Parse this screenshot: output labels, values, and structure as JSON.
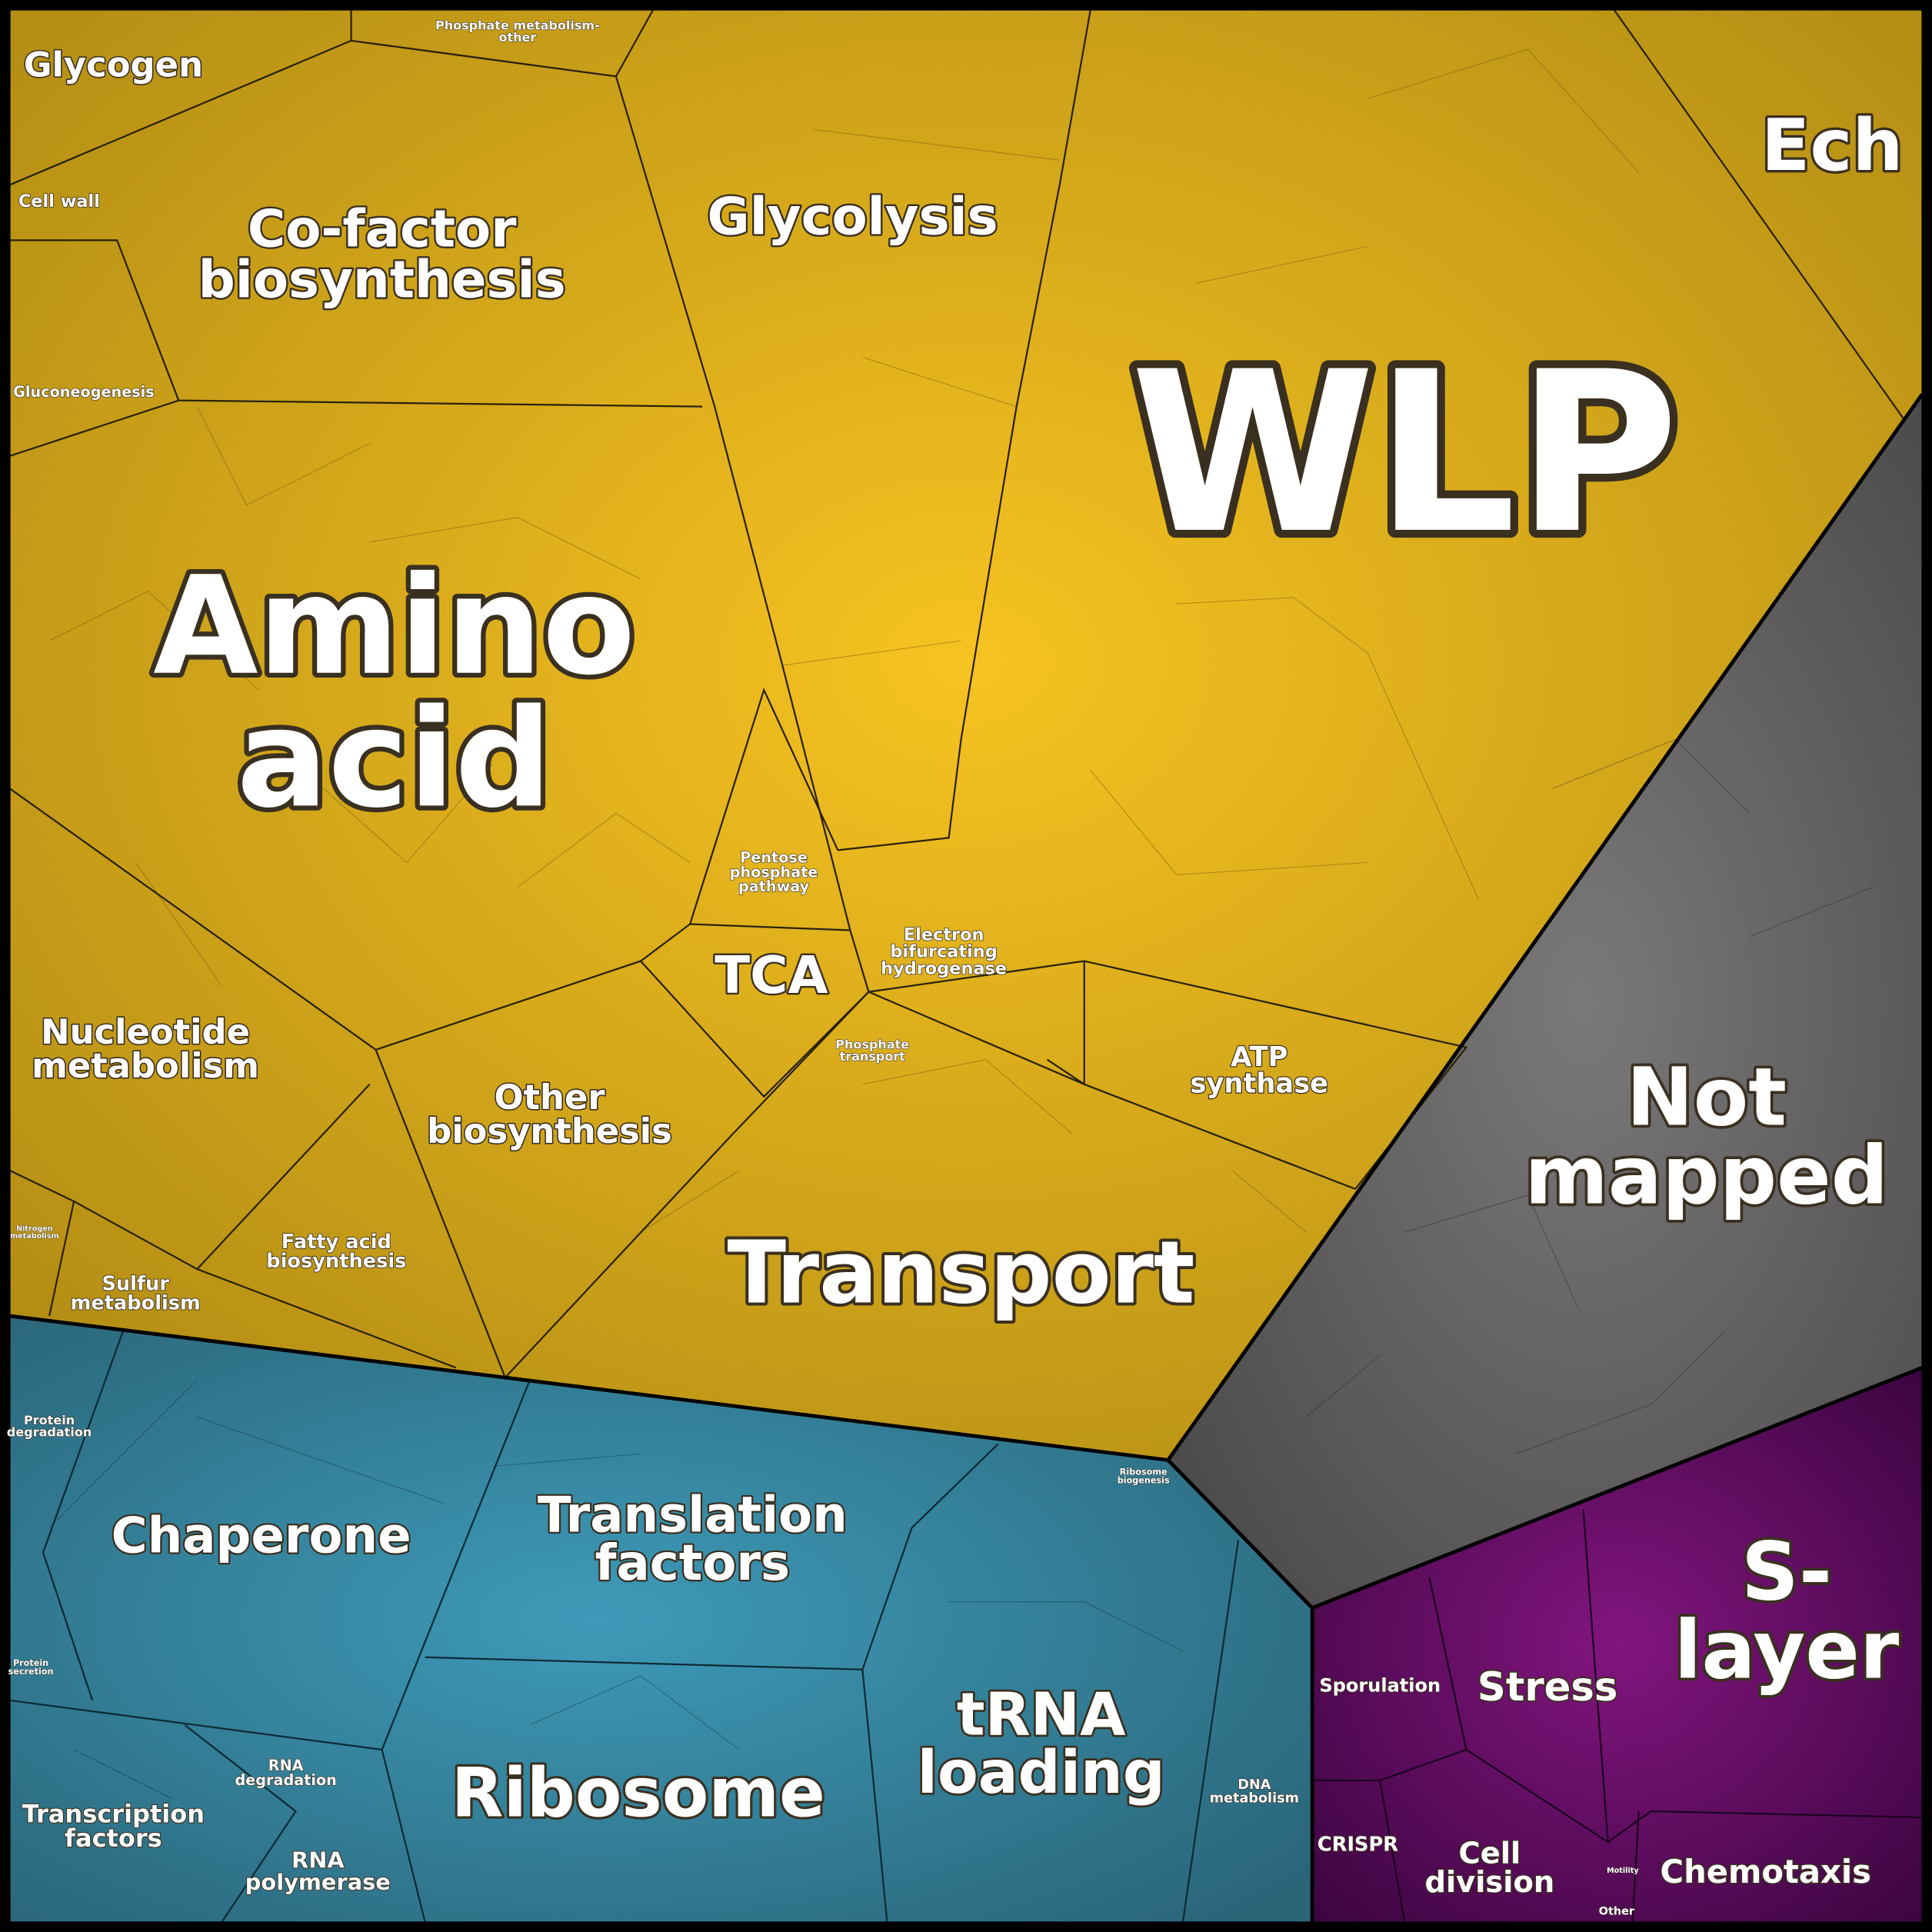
{
  "regions": [
    {
      "lines": [
        "Glycogen"
      ]
    },
    {
      "lines": [
        "Phosphate metabolism-",
        "other"
      ]
    },
    {
      "lines": [
        "Cell wall"
      ]
    },
    {
      "lines": [
        "Co-factor",
        "biosynthesis"
      ]
    },
    {
      "lines": [
        "Gluconeogenesis"
      ]
    },
    {
      "lines": [
        "Glycolysis"
      ]
    },
    {
      "lines": [
        "Ech"
      ]
    },
    {
      "lines": [
        "WLP"
      ]
    },
    {
      "lines": [
        "Amino",
        "acid"
      ]
    },
    {
      "lines": [
        "Nucleotide",
        "metabolism"
      ]
    },
    {
      "lines": [
        "Pentose",
        "phosphate",
        "pathway"
      ]
    },
    {
      "lines": [
        "TCA"
      ]
    },
    {
      "lines": [
        "Electron",
        "bifurcating",
        "hydrogenase"
      ]
    },
    {
      "lines": [
        "Phosphate",
        "transport"
      ]
    },
    {
      "lines": [
        "Other",
        "biosynthesis"
      ]
    },
    {
      "lines": [
        "ATP",
        "synthase"
      ]
    },
    {
      "lines": [
        "Not",
        "mapped"
      ]
    },
    {
      "lines": [
        "Nitrogen",
        "metabolism"
      ]
    },
    {
      "lines": [
        "Fatty acid",
        "biosynthesis"
      ]
    },
    {
      "lines": [
        "Sulfur",
        "metabolism"
      ]
    },
    {
      "lines": [
        "Transport"
      ]
    },
    {
      "lines": [
        "Protein",
        "degradation"
      ]
    },
    {
      "lines": [
        "Chaperone"
      ]
    },
    {
      "lines": [
        "Translation",
        "factors"
      ]
    },
    {
      "lines": [
        "Ribosome",
        "biogenesis"
      ]
    },
    {
      "lines": [
        "Protein",
        "secretion"
      ]
    },
    {
      "lines": [
        "RNA",
        "degradation"
      ]
    },
    {
      "lines": [
        "Transcription",
        "factors"
      ]
    },
    {
      "lines": [
        "RNA",
        "polymerase"
      ]
    },
    {
      "lines": [
        "Ribosome"
      ]
    },
    {
      "lines": [
        "tRNA",
        "loading"
      ]
    },
    {
      "lines": [
        "DNA",
        "metabolism"
      ]
    },
    {
      "lines": [
        "Sporulation"
      ]
    },
    {
      "lines": [
        "Stress"
      ]
    },
    {
      "lines": [
        "S-",
        "layer"
      ]
    },
    {
      "lines": [
        "CRISPR"
      ]
    },
    {
      "lines": [
        "Cell",
        "division"
      ]
    },
    {
      "lines": [
        "Motility"
      ]
    },
    {
      "lines": [
        "Chemotaxis"
      ]
    },
    {
      "lines": [
        "Other"
      ]
    }
  ]
}
